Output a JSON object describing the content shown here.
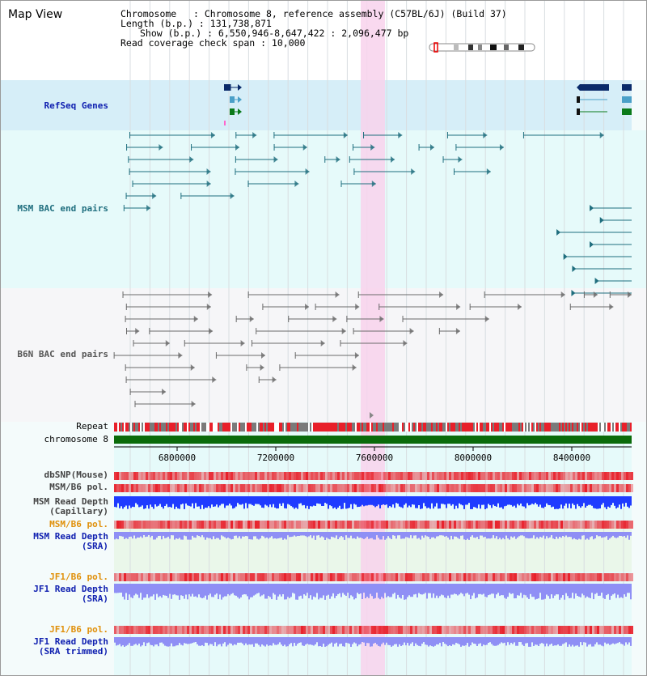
{
  "title": "Map View",
  "info": {
    "chromosome": "Chromosome   : Chromosome 8, reference assembly (C57BL/6J) (Build 37)",
    "length": "Length (b.p.) : 131,738,871",
    "show": "Show (b.p.) : 6,550,946-8,647,422 : 2,096,477 bp",
    "coverage": "Read coverage check span : 10,000"
  },
  "tracks": {
    "refseq": "RefSeq Genes",
    "msm_bac": "MSM BAC end pairs",
    "b6n_bac": "B6N BAC end pairs",
    "repeat": "Repeat",
    "chromosome": "chromosome 8",
    "dbsnp": "dbSNP(Mouse)",
    "msm_b6_pol": "MSM/B6 pol.",
    "msm_depth_cap_1": "MSM Read Depth",
    "msm_depth_cap_2": "(Capillary)",
    "msm_b6_pol_2": "MSM/B6 pol.",
    "msm_depth_sra_1": "MSM Read Depth",
    "msm_depth_sra_2": "(SRA)",
    "jf1_b6_pol": "JF1/B6 pol.",
    "jf1_depth_sra_1": "JF1 Read Depth",
    "jf1_depth_sra_2": "(SRA)",
    "jf1_b6_pol_2": "JF1/B6 pol.",
    "jf1_depth_trim_1": "JF1 Read Depth",
    "jf1_depth_trim_2": "(SRA trimmed)"
  },
  "axis": {
    "ticks": [
      "6800000",
      "7200000",
      "7600000",
      "8000000",
      "8400000"
    ]
  },
  "colors": {
    "highlight": "#f8d2ec",
    "refseq_bg": "#d6eef8",
    "msm_color": "#1f6e7e",
    "b6n_color": "#6a6a6a",
    "chrom_green": "#0a6b0a",
    "depth_blue": "#1f3bff",
    "depth_light": "#8f8ff5",
    "pol_red": "#e8202a",
    "label_blue": "#1020b0",
    "label_orange": "#e0900a"
  }
}
